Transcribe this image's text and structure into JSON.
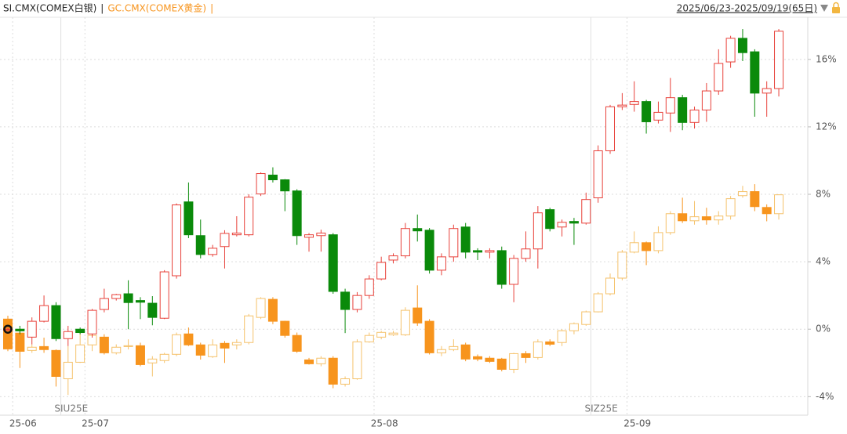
{
  "chart_data": {
    "type": "candlestick",
    "legend": [
      {
        "name": "SI.CMX(COMEX白银)",
        "color": "#222222"
      },
      {
        "name": "GC.CMX(COMEX黄金)",
        "color": "#f7941d"
      }
    ],
    "separator": "|",
    "range_label": "2025/06/23-2025/09/19(65日)",
    "categories": [
      null,
      "25-06",
      null,
      null,
      null,
      null,
      null,
      "25-07",
      null,
      null,
      null,
      null,
      null,
      null,
      null,
      null,
      null,
      null,
      null,
      null,
      null,
      null,
      null,
      null,
      null,
      null,
      null,
      null,
      null,
      null,
      null,
      "25-08",
      null,
      null,
      null,
      null,
      null,
      null,
      null,
      null,
      null,
      null,
      null,
      null,
      null,
      null,
      null,
      null,
      null,
      null,
      null,
      null,
      "25-09",
      null,
      null,
      null,
      null,
      null,
      null,
      null,
      null,
      null,
      null,
      null,
      null
    ],
    "contract_categories": [
      null,
      null,
      null,
      null,
      null,
      "SIU25E",
      null,
      null,
      null,
      null,
      null,
      null,
      null,
      null,
      null,
      null,
      null,
      null,
      null,
      null,
      null,
      null,
      null,
      null,
      null,
      null,
      null,
      null,
      null,
      null,
      null,
      null,
      null,
      null,
      null,
      null,
      null,
      null,
      null,
      null,
      null,
      null,
      null,
      null,
      null,
      null,
      null,
      null,
      null,
      "SIZ25E",
      null,
      null,
      null,
      null,
      null,
      null,
      null,
      null,
      null,
      null,
      null,
      null,
      null,
      null,
      null
    ],
    "ylim": [
      -5.1,
      18.5
    ],
    "yticks": [
      {
        "value": 16,
        "label": "16%"
      },
      {
        "value": 12,
        "label": "12%"
      },
      {
        "value": 8,
        "label": "8%"
      },
      {
        "value": 4,
        "label": "4%"
      },
      {
        "value": 0,
        "label": "0%"
      },
      {
        "value": -4,
        "label": "-4%"
      }
    ],
    "grid": true,
    "series": [
      {
        "name": "SI.CMX(COMEX白银)",
        "up_color": "#e8413a",
        "down_color": "#0a8a0a",
        "up_hollow": true,
        "open": [
          0,
          0,
          -0.47,
          0.47,
          1.4,
          -0.56,
          0,
          -0.28,
          1.17,
          1.82,
          2.1,
          1.7,
          1.54,
          0.65,
          3.17,
          7.55,
          5.55,
          4.43,
          4.9,
          5.6,
          5.6,
          8.02,
          9.14,
          8.86,
          8.2,
          5.45,
          5.55,
          5.6,
          2.2,
          1.17,
          2.0,
          2.98,
          4.1,
          4.35,
          5.97,
          5.87,
          3.5,
          4.29,
          6.06,
          4.66,
          4.57,
          4.66,
          2.66,
          4.2,
          4.76,
          7.09,
          6.06,
          6.39,
          6.29,
          7.79,
          10.58,
          13.19,
          13.33,
          13.5,
          12.4,
          12.82,
          13.73,
          12.26,
          13.0,
          14.13,
          15.85,
          17.25,
          16.45,
          14.0,
          14.27
        ],
        "high": [
          0.1,
          0.2,
          0.7,
          2.0,
          1.6,
          0.2,
          0.1,
          1.2,
          2.4,
          2.1,
          2.9,
          1.9,
          1.96,
          3.5,
          7.46,
          8.7,
          6.5,
          5.0,
          5.87,
          6.7,
          8.0,
          9.3,
          9.6,
          8.9,
          8.3,
          5.7,
          5.9,
          5.7,
          2.4,
          2.2,
          3.2,
          4.3,
          4.5,
          6.3,
          6.8,
          6.0,
          4.5,
          6.2,
          6.3,
          4.8,
          4.8,
          4.9,
          4.4,
          5.8,
          7.3,
          7.2,
          6.5,
          6.6,
          8.1,
          10.9,
          13.3,
          14.0,
          14.7,
          13.6,
          13.5,
          14.9,
          13.9,
          13.2,
          14.6,
          16.6,
          17.4,
          17.8,
          16.6,
          14.7,
          17.8
        ],
        "low": [
          -0.1,
          -0.3,
          -0.9,
          0.4,
          -0.7,
          -1.0,
          -0.3,
          -0.5,
          1.0,
          1.7,
          0.0,
          0.6,
          0.23,
          0.6,
          3.0,
          5.4,
          4.2,
          4.3,
          3.6,
          5.5,
          5.5,
          7.9,
          8.7,
          7.0,
          5.0,
          4.6,
          4.6,
          2.1,
          -0.23,
          1.0,
          1.8,
          2.9,
          3.9,
          4.2,
          5.2,
          3.3,
          3.2,
          4.0,
          4.2,
          4.1,
          4.2,
          2.4,
          1.6,
          4.0,
          3.6,
          5.8,
          5.5,
          5.0,
          6.2,
          7.5,
          10.4,
          13.0,
          12.9,
          11.6,
          12.2,
          11.7,
          11.8,
          11.9,
          12.3,
          13.9,
          15.5,
          15.9,
          12.6,
          12.6,
          13.8
        ],
        "close": [
          0,
          -0.1,
          0.47,
          1.4,
          -0.56,
          -0.14,
          -0.2,
          1.12,
          1.82,
          2.05,
          1.58,
          1.6,
          0.7,
          3.4,
          7.37,
          5.6,
          4.43,
          4.8,
          5.68,
          5.7,
          7.83,
          9.23,
          8.86,
          8.2,
          5.55,
          5.6,
          5.7,
          2.24,
          1.17,
          2.0,
          2.98,
          3.96,
          4.35,
          5.97,
          5.83,
          3.5,
          4.29,
          5.97,
          4.57,
          4.57,
          4.66,
          2.66,
          4.2,
          4.76,
          6.9,
          5.97,
          6.34,
          6.29,
          7.69,
          10.58,
          13.19,
          13.29,
          13.5,
          12.3,
          12.86,
          13.73,
          12.26,
          13.0,
          14.13,
          15.76,
          17.25,
          16.4,
          14.0,
          14.27,
          17.67
        ]
      },
      {
        "name": "GC.CMX(COMEX黄金)",
        "up_color": "#f5c26b",
        "down_color": "#f7941d",
        "up_hollow": true,
        "open": [
          0.6,
          -0.23,
          -1.26,
          -1.03,
          -1.26,
          -2.94,
          -1.96,
          -0.93,
          -0.47,
          -1.4,
          -1.03,
          -0.98,
          -2.0,
          -1.86,
          -1.49,
          -0.28,
          -0.93,
          -1.63,
          -0.84,
          -0.93,
          -0.79,
          0.7,
          1.77,
          0.47,
          -0.37,
          -1.82,
          -2.05,
          -1.72,
          -3.26,
          -2.94,
          -0.75,
          -0.47,
          -0.33,
          -0.33,
          1.26,
          0.47,
          -1.4,
          -1.21,
          -0.93,
          -1.63,
          -1.72,
          -1.77,
          -2.38,
          -1.45,
          -1.68,
          -0.75,
          -0.79,
          -0.09,
          0.28,
          1.03,
          2.1,
          3.03,
          4.57,
          5.13,
          4.66,
          5.73,
          6.85,
          6.43,
          6.67,
          6.48,
          6.71,
          7.92,
          8.16,
          7.22,
          6.85
        ],
        "high": [
          0.8,
          -0.1,
          -0.9,
          -0.5,
          -1.2,
          -1.0,
          -0.1,
          -0.2,
          -0.3,
          -0.9,
          -0.6,
          -0.8,
          -1.6,
          -1.4,
          -0.2,
          0.1,
          -0.8,
          -0.6,
          -0.7,
          -0.6,
          0.9,
          1.9,
          1.9,
          0.5,
          -0.2,
          -1.7,
          -1.6,
          -1.6,
          -2.8,
          -0.6,
          -0.2,
          -0.1,
          -0.1,
          1.3,
          2.6,
          0.6,
          -1.0,
          -0.6,
          -0.8,
          -1.5,
          -1.6,
          -1.7,
          -1.4,
          -1.3,
          -0.6,
          -0.6,
          0.0,
          0.4,
          1.1,
          2.2,
          3.3,
          4.7,
          5.8,
          5.2,
          6.1,
          7.0,
          7.8,
          7.6,
          7.2,
          7.0,
          7.9,
          8.5,
          8.6,
          7.4,
          8.0
        ],
        "low": [
          -1.3,
          -2.3,
          -1.4,
          -1.4,
          -3.4,
          -3.9,
          -2.0,
          -1.3,
          -1.5,
          -1.5,
          -1.2,
          -2.2,
          -2.8,
          -2.0,
          -1.6,
          -1.0,
          -1.8,
          -1.7,
          -2.0,
          -1.2,
          -0.9,
          0.6,
          0.3,
          -0.5,
          -1.4,
          -2.1,
          -2.2,
          -3.5,
          -3.4,
          -3.0,
          -0.8,
          -0.6,
          -0.4,
          -0.4,
          0.2,
          -1.5,
          -1.6,
          -1.3,
          -1.9,
          -1.9,
          -2.0,
          -2.5,
          -2.6,
          -2.0,
          -1.8,
          -1.0,
          -1.0,
          -0.3,
          0.2,
          1.0,
          2.0,
          2.9,
          4.5,
          3.8,
          4.5,
          5.6,
          6.3,
          6.2,
          6.2,
          6.2,
          6.5,
          7.8,
          7.0,
          6.4,
          6.5
        ],
        "close": [
          -1.17,
          -1.31,
          -1.07,
          -1.21,
          -2.8,
          -1.96,
          -0.93,
          -0.37,
          -1.4,
          -1.07,
          -0.98,
          -2.1,
          -1.77,
          -1.49,
          -0.33,
          -0.93,
          -1.54,
          -0.93,
          -1.12,
          -0.79,
          0.79,
          1.82,
          0.47,
          -0.37,
          -1.31,
          -2.05,
          -1.72,
          -3.26,
          -2.94,
          -0.75,
          -0.37,
          -0.19,
          -0.23,
          1.12,
          0.37,
          -1.4,
          -1.21,
          -1.03,
          -1.77,
          -1.77,
          -1.91,
          -2.38,
          -1.45,
          -1.68,
          -0.75,
          -0.89,
          -0.09,
          0.33,
          1.03,
          2.1,
          3.03,
          4.57,
          5.13,
          4.66,
          5.73,
          6.85,
          6.43,
          6.67,
          6.48,
          6.71,
          7.74,
          8.16,
          7.27,
          6.85,
          7.97
        ]
      }
    ]
  }
}
